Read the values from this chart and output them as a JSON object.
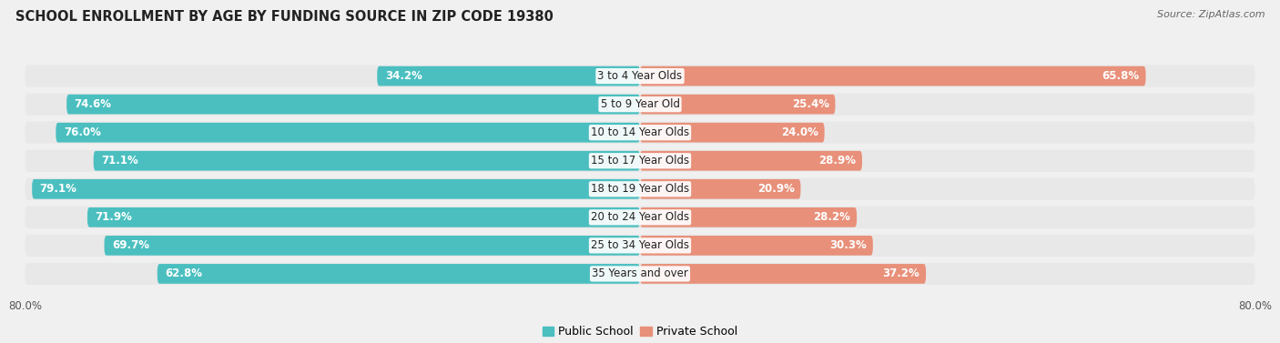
{
  "title": "SCHOOL ENROLLMENT BY AGE BY FUNDING SOURCE IN ZIP CODE 19380",
  "source": "Source: ZipAtlas.com",
  "categories": [
    "3 to 4 Year Olds",
    "5 to 9 Year Old",
    "10 to 14 Year Olds",
    "15 to 17 Year Olds",
    "18 to 19 Year Olds",
    "20 to 24 Year Olds",
    "25 to 34 Year Olds",
    "35 Years and over"
  ],
  "public_values": [
    34.2,
    74.6,
    76.0,
    71.1,
    79.1,
    71.9,
    69.7,
    62.8
  ],
  "private_values": [
    65.8,
    25.4,
    24.0,
    28.9,
    20.9,
    28.2,
    30.3,
    37.2
  ],
  "public_color": "#4BBFC0",
  "private_color": "#E8907A",
  "axis_limit": 80.0,
  "bg_color": "#f0f0f0",
  "row_bg_color": "#e8e8e8",
  "row_border_color": "#ffffff",
  "title_fontsize": 10.5,
  "source_fontsize": 8,
  "label_fontsize": 8.5,
  "tick_fontsize": 8.5,
  "legend_fontsize": 9,
  "pub_label_threshold": 20,
  "priv_label_threshold": 15
}
